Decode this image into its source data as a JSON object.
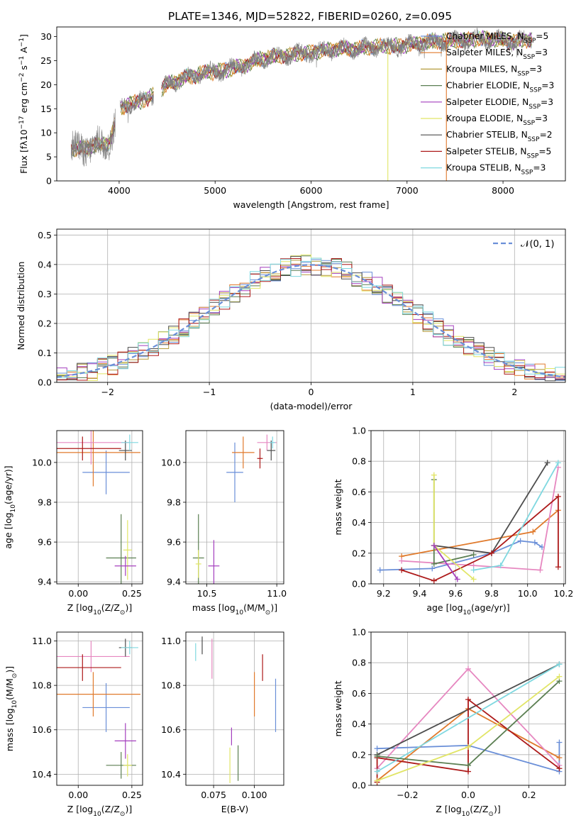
{
  "figure_title": "PLATE=1346, MJD=52822, FIBERID=0260, z=0.095",
  "colors": {
    "Chabrier MILES": "#6a8fd8",
    "Salpeter MILES": "#e07a2c",
    "Kroupa MILES": "#b59a3c",
    "Chabrier ELODIE": "#5b7f52",
    "Salpeter ELODIE": "#a43fbe",
    "Kroupa ELODIE": "#e1e566",
    "Chabrier STELIB": "#4d4d4d",
    "Salpeter STELIB": "#ad1a1a",
    "Kroupa STELIB": "#7fd8e0",
    "pink": "#e687c0",
    "lime": "#a6d65a",
    "data_gray": "#808080",
    "gaussian": "#6a8fd8"
  },
  "chart_data": [
    {
      "id": "spectrum",
      "type": "line",
      "title": "PLATE=1346, MJD=52822, FIBERID=0260, z=0.095",
      "xlabel": "wavelength [Angstrom, rest frame]",
      "ylabel": "Flux [f_λ 10^-17 erg cm^-2 s^-1 A^-1]",
      "xlim": [
        3350,
        8650
      ],
      "ylim": [
        0,
        32
      ],
      "xticks": [
        "4000",
        "5000",
        "6000",
        "7000",
        "8000"
      ],
      "yticks": [
        "0",
        "5",
        "10",
        "15",
        "20",
        "25",
        "30"
      ],
      "legend": [
        "Chabrier MILES, N_SSP=5",
        "Salpeter MILES, N_SSP=3",
        "Kroupa MILES, N_SSP=3",
        "Chabrier ELODIE, N_SSP=3",
        "Salpeter ELODIE, N_SSP=3",
        "Kroupa ELODIE, N_SSP=3",
        "Chabrier STELIB, N_SSP=2",
        "Salpeter STELIB, N_SSP=5",
        "Kroupa STELIB, N_SSP=3"
      ],
      "legend_position": "right",
      "continuum": {
        "x": [
          3500,
          3700,
          3900,
          4000,
          4100,
          4300,
          4500,
          4700,
          4900,
          5100,
          5300,
          5500,
          5700,
          5900,
          6100,
          6300,
          6500,
          6700,
          6900,
          7100,
          7300,
          7500,
          7700,
          7900,
          8100,
          8300
        ],
        "y": [
          6.5,
          7.0,
          8.0,
          15.0,
          16.0,
          17.0,
          20.0,
          21.5,
          22.5,
          23.0,
          24.0,
          25.5,
          26.0,
          26.5,
          27.0,
          27.5,
          27.5,
          28.0,
          28.0,
          28.5,
          29.0,
          29.0,
          29.5,
          29.5,
          29.0,
          29.5
        ]
      },
      "gaps": [
        [
          3960,
          4010
        ],
        [
          4360,
          4440
        ]
      ],
      "spikes": [
        {
          "x": 6800,
          "ymin": 0,
          "ymax": 27,
          "series": "Kroupa ELODIE"
        },
        {
          "x": 7410,
          "ymin": 0,
          "ymax": 30,
          "series": "Salpeter MILES"
        }
      ]
    },
    {
      "id": "residuals",
      "type": "histogram",
      "xlabel": "(data-model)/error",
      "ylabel": "Normed distribution",
      "xlim": [
        -2.5,
        2.5
      ],
      "ylim": [
        0,
        0.52
      ],
      "xticks": [
        "−2",
        "−1",
        "0",
        "1",
        "2"
      ],
      "yticks": [
        "0.0",
        "0.1",
        "0.2",
        "0.3",
        "0.4",
        "0.5"
      ],
      "grid": true,
      "legend": [
        "𝒩(0, 1)"
      ],
      "legend_position": "top-right",
      "bin_edges_range": [
        -2.5,
        2.5
      ],
      "n_bins": 50,
      "gaussian": {
        "mu": 0,
        "sigma": 1
      }
    },
    {
      "id": "age-Z",
      "type": "errorbar",
      "xlabel": "Z [log10(Z/Z⊙)]",
      "ylabel": "age  [log10(age/yr)]",
      "xlim": [
        -0.1,
        0.3
      ],
      "ylim": [
        9.39,
        10.16
      ],
      "xticks": [
        "0.00",
        "0.25"
      ],
      "yticks": [
        "9.4",
        "9.6",
        "9.8",
        "10.0"
      ],
      "grid": true,
      "points": [
        {
          "series": "Chabrier MILES",
          "x": 0.13,
          "xerr": 0.11,
          "y": 9.95,
          "yerr": 0.11
        },
        {
          "series": "Salpeter MILES",
          "x": 0.07,
          "xerr": 0.22,
          "y": 10.05,
          "yerr": 0.17
        },
        {
          "series": "pink",
          "x": 0.06,
          "xerr": 0.18,
          "y": 10.1,
          "yerr": 0.11
        },
        {
          "series": "Salpeter STELIB",
          "x": 0.02,
          "xerr": 0.18,
          "y": 10.07,
          "yerr": 0.06
        },
        {
          "series": "Chabrier STELIB",
          "x": 0.22,
          "xerr": 0.03,
          "y": 10.06,
          "yerr": 0.05
        },
        {
          "series": "Kroupa STELIB",
          "x": 0.24,
          "xerr": 0.04,
          "y": 10.1,
          "yerr": 0.04
        },
        {
          "series": "Chabrier ELODIE",
          "x": 0.2,
          "xerr": 0.07,
          "y": 9.52,
          "yerr": 0.22
        },
        {
          "series": "Kroupa ELODIE",
          "x": 0.23,
          "xerr": 0.02,
          "y": 9.56,
          "yerr": 0.15
        },
        {
          "series": "Salpeter ELODIE",
          "x": 0.22,
          "xerr": 0.05,
          "y": 9.48,
          "yerr": 0.05
        }
      ]
    },
    {
      "id": "age-mass",
      "type": "errorbar",
      "xlabel": "mass [log10(M/M⊙)]",
      "ylabel": "",
      "xlim": [
        10.35,
        11.05
      ],
      "ylim": [
        9.39,
        10.16
      ],
      "xticks": [
        "10.5",
        "11.0"
      ],
      "yticks": [
        "9.4",
        "9.6",
        "9.8",
        "10.0"
      ],
      "grid": true,
      "points": [
        {
          "series": "Chabrier MILES",
          "x": 10.7,
          "xerr": 0.06,
          "y": 9.95,
          "yerr": 0.15
        },
        {
          "series": "Salpeter MILES",
          "x": 10.76,
          "xerr": 0.08,
          "y": 10.05,
          "yerr": 0.08
        },
        {
          "series": "pink",
          "x": 10.93,
          "xerr": 0.07,
          "y": 10.1,
          "yerr": 0.04
        },
        {
          "series": "Salpeter STELIB",
          "x": 10.88,
          "xerr": 0.02,
          "y": 10.02,
          "yerr": 0.05
        },
        {
          "series": "Chabrier STELIB",
          "x": 10.96,
          "xerr": 0.03,
          "y": 10.06,
          "yerr": 0.05
        },
        {
          "series": "Kroupa STELIB",
          "x": 10.97,
          "xerr": 0.02,
          "y": 10.1,
          "yerr": 0.03
        },
        {
          "series": "Chabrier ELODIE",
          "x": 10.44,
          "xerr": 0.04,
          "y": 9.52,
          "yerr": 0.22
        },
        {
          "series": "Kroupa ELODIE",
          "x": 10.44,
          "xerr": 0.02,
          "y": 9.49,
          "yerr": 0.07
        },
        {
          "series": "Salpeter ELODIE",
          "x": 10.55,
          "xerr": 0.04,
          "y": 9.48,
          "yerr": 0.13
        }
      ]
    },
    {
      "id": "weight-age",
      "type": "line",
      "xlabel": "age  [log10(age/yr)]",
      "ylabel": "mass weight",
      "xlim": [
        9.13,
        10.21
      ],
      "ylim": [
        0,
        1
      ],
      "xticks": [
        "9.2",
        "9.4",
        "9.6",
        "9.8",
        "10.0",
        "10.2"
      ],
      "yticks": [
        "0.0",
        "0.2",
        "0.4",
        "0.6",
        "0.8",
        "1.0"
      ],
      "grid": true,
      "series": [
        {
          "series": "Chabrier MILES",
          "x": [
            9.18,
            9.47,
            9.8,
            9.96,
            10.04,
            10.08
          ],
          "y": [
            0.09,
            0.1,
            0.2,
            0.28,
            0.27,
            0.24
          ]
        },
        {
          "series": "Salpeter MILES",
          "x": [
            9.3,
            10.03,
            10.17
          ],
          "y": [
            0.18,
            0.34,
            0.48
          ]
        },
        {
          "series": "pink",
          "x": [
            9.3,
            9.7,
            10.07,
            10.17
          ],
          "y": [
            0.15,
            0.12,
            0.09,
            0.76
          ]
        },
        {
          "series": "Chabrier STELIB",
          "x": [
            9.48,
            9.8,
            10.11
          ],
          "y": [
            0.25,
            0.2,
            0.79
          ]
        },
        {
          "series": "Salpeter STELIB",
          "x": [
            9.3,
            9.48,
            9.8,
            10.17,
            10.17
          ],
          "y": [
            0.09,
            0.02,
            0.2,
            0.57,
            0.11
          ]
        },
        {
          "series": "Kroupa STELIB",
          "x": [
            9.7,
            9.85,
            10.17
          ],
          "y": [
            0.09,
            0.12,
            0.79
          ]
        },
        {
          "series": "Chabrier ELODIE",
          "x": [
            9.48,
            9.48,
            9.7
          ],
          "y": [
            0.68,
            0.13,
            0.19
          ]
        },
        {
          "series": "Kroupa ELODIE",
          "x": [
            9.48,
            9.48,
            9.7
          ],
          "y": [
            0.71,
            0.25,
            0.03
          ]
        },
        {
          "series": "Salpeter ELODIE",
          "x": [
            9.48,
            9.61
          ],
          "y": [
            0.25,
            0.03
          ]
        }
      ]
    },
    {
      "id": "mass-Z",
      "type": "errorbar",
      "xlabel": "Z [log10(Z/Z⊙)]",
      "ylabel": "mass [log10(M/M⊙)]",
      "xlim": [
        -0.1,
        0.3
      ],
      "ylim": [
        10.35,
        11.04
      ],
      "xticks": [
        "0.00",
        "0.25"
      ],
      "yticks": [
        "10.4",
        "10.6",
        "10.8",
        "11.0"
      ],
      "grid": true,
      "points": [
        {
          "series": "Chabrier MILES",
          "x": 0.13,
          "xerr": 0.11,
          "y": 10.7,
          "yerr": 0.11
        },
        {
          "series": "Salpeter MILES",
          "x": 0.07,
          "xerr": 0.22,
          "y": 10.76,
          "yerr": 0.1
        },
        {
          "series": "pink",
          "x": 0.06,
          "xerr": 0.18,
          "y": 10.93,
          "yerr": 0.07
        },
        {
          "series": "Salpeter STELIB",
          "x": 0.02,
          "xerr": 0.18,
          "y": 10.88,
          "yerr": 0.06
        },
        {
          "series": "Chabrier STELIB",
          "x": 0.22,
          "xerr": 0.03,
          "y": 10.97,
          "yerr": 0.04
        },
        {
          "series": "Kroupa STELIB",
          "x": 0.24,
          "xerr": 0.04,
          "y": 10.97,
          "yerr": 0.03
        },
        {
          "series": "Chabrier ELODIE",
          "x": 0.2,
          "xerr": 0.07,
          "y": 10.44,
          "yerr": 0.06
        },
        {
          "series": "Kroupa ELODIE",
          "x": 0.23,
          "xerr": 0.02,
          "y": 10.44,
          "yerr": 0.05
        },
        {
          "series": "Salpeter ELODIE",
          "x": 0.22,
          "xerr": 0.05,
          "y": 10.55,
          "yerr": 0.08
        }
      ]
    },
    {
      "id": "mass-ebv",
      "type": "errorbar",
      "xlabel": "E(B-V)",
      "ylabel": "",
      "xlim": [
        0.058,
        0.118
      ],
      "ylim": [
        10.35,
        11.04
      ],
      "xticks": [
        "0.075",
        "0.100"
      ],
      "yticks": [
        "10.4",
        "10.6",
        "10.8",
        "11.0"
      ],
      "grid": true,
      "points": [
        {
          "series": "Chabrier MILES",
          "x": 0.113,
          "xerr": 0,
          "y": 10.71,
          "yerr": 0.12
        },
        {
          "series": "Salpeter MILES",
          "x": 0.1,
          "xerr": 0,
          "y": 10.76,
          "yerr": 0.1
        },
        {
          "series": "pink",
          "x": 0.074,
          "xerr": 0,
          "y": 10.92,
          "yerr": 0.09
        },
        {
          "series": "Salpeter STELIB",
          "x": 0.105,
          "xerr": 0,
          "y": 10.88,
          "yerr": 0.06
        },
        {
          "series": "Chabrier STELIB",
          "x": 0.068,
          "xerr": 0,
          "y": 10.98,
          "yerr": 0.04
        },
        {
          "series": "Kroupa STELIB",
          "x": 0.064,
          "xerr": 0,
          "y": 10.95,
          "yerr": 0.04
        },
        {
          "series": "Chabrier ELODIE",
          "x": 0.09,
          "xerr": 0,
          "y": 10.45,
          "yerr": 0.08
        },
        {
          "series": "Kroupa ELODIE",
          "x": 0.085,
          "xerr": 0,
          "y": 10.44,
          "yerr": 0.08
        },
        {
          "series": "Salpeter ELODIE",
          "x": 0.086,
          "xerr": 0,
          "y": 10.57,
          "yerr": 0.04
        }
      ]
    },
    {
      "id": "weight-Z",
      "type": "line",
      "xlabel": "Z [log10(Z/Z⊙)]",
      "ylabel": "mass weight",
      "xlim": [
        -0.32,
        0.32
      ],
      "ylim": [
        0,
        1
      ],
      "xticks": [
        "−0.2",
        "0.0",
        "0.2"
      ],
      "yticks": [
        "0.0",
        "0.2",
        "0.4",
        "0.6",
        "0.8",
        "1.0"
      ],
      "grid": true,
      "series": [
        {
          "series": "Chabrier MILES",
          "x": [
            -0.3,
            0.0,
            0.3,
            0.3
          ],
          "y": [
            0.24,
            0.26,
            0.09,
            0.28
          ]
        },
        {
          "series": "Salpeter MILES",
          "x": [
            -0.3,
            0.0,
            0.3
          ],
          "y": [
            0.03,
            0.5,
            0.18
          ]
        },
        {
          "series": "pink",
          "x": [
            -0.3,
            0.0,
            0.3
          ],
          "y": [
            0.11,
            0.76,
            0.13
          ]
        },
        {
          "series": "Chabrier STELIB",
          "x": [
            -0.3,
            0.3
          ],
          "y": [
            0.2,
            0.79
          ]
        },
        {
          "series": "Salpeter STELIB",
          "x": [
            -0.3,
            -0.3,
            0.0,
            0.0,
            0.3
          ],
          "y": [
            0.02,
            0.18,
            0.09,
            0.56,
            0.11
          ]
        },
        {
          "series": "Kroupa STELIB",
          "x": [
            -0.3,
            0.3
          ],
          "y": [
            0.09,
            0.79
          ]
        },
        {
          "series": "Chabrier ELODIE",
          "x": [
            -0.3,
            0.0,
            0.3
          ],
          "y": [
            0.19,
            0.13,
            0.68
          ]
        },
        {
          "series": "Kroupa ELODIE",
          "x": [
            -0.3,
            0.0,
            0.3
          ],
          "y": [
            0.03,
            0.25,
            0.71
          ]
        }
      ]
    }
  ]
}
